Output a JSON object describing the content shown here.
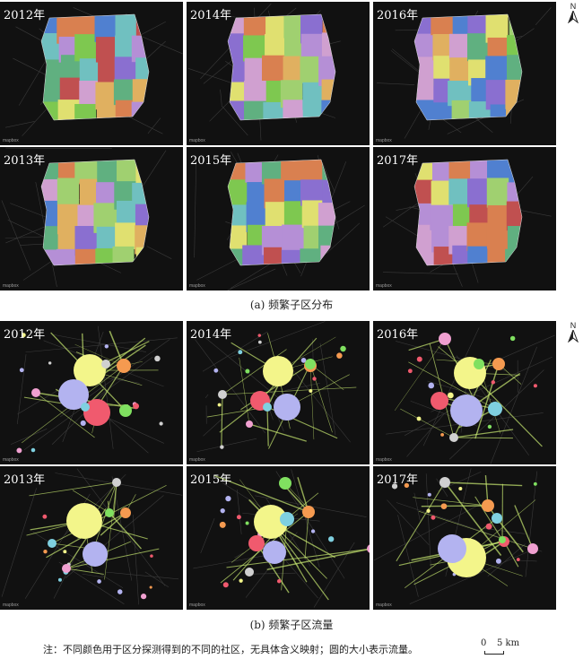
{
  "section_a": {
    "caption": "(a) 频繁子区分布",
    "panels": [
      {
        "year": "2012年"
      },
      {
        "year": "2014年"
      },
      {
        "year": "2016年"
      },
      {
        "year": "2013年"
      },
      {
        "year": "2015年"
      },
      {
        "year": "2017年"
      }
    ]
  },
  "section_b": {
    "caption": "(b) 频繁子区流量",
    "panels": [
      {
        "year": "2012年"
      },
      {
        "year": "2014年"
      },
      {
        "year": "2016年"
      },
      {
        "year": "2013年"
      },
      {
        "year": "2015年"
      },
      {
        "year": "2017年"
      }
    ]
  },
  "north_label": "N",
  "attribution": "mapbox",
  "note": "注：不同颜色用于区分探测得到的不同的社区，无具体含义映射；圆的大小表示流量。",
  "scale": {
    "zero": "0",
    "label": "5 km"
  },
  "colors": {
    "background": "#111111",
    "community_palette": [
      "#7ec850",
      "#d98050",
      "#b58fd6",
      "#e0e070",
      "#70c0c0",
      "#c05050",
      "#5080d0",
      "#d0a0d0",
      "#a0d070",
      "#8a6fd0",
      "#e0b060",
      "#60b080"
    ],
    "flow_circles": [
      "#f3f58a",
      "#b3b3f0",
      "#f05a6e",
      "#f59a50",
      "#7fd0e0",
      "#80e060",
      "#f0a0d0",
      "#d0d0d0"
    ]
  }
}
